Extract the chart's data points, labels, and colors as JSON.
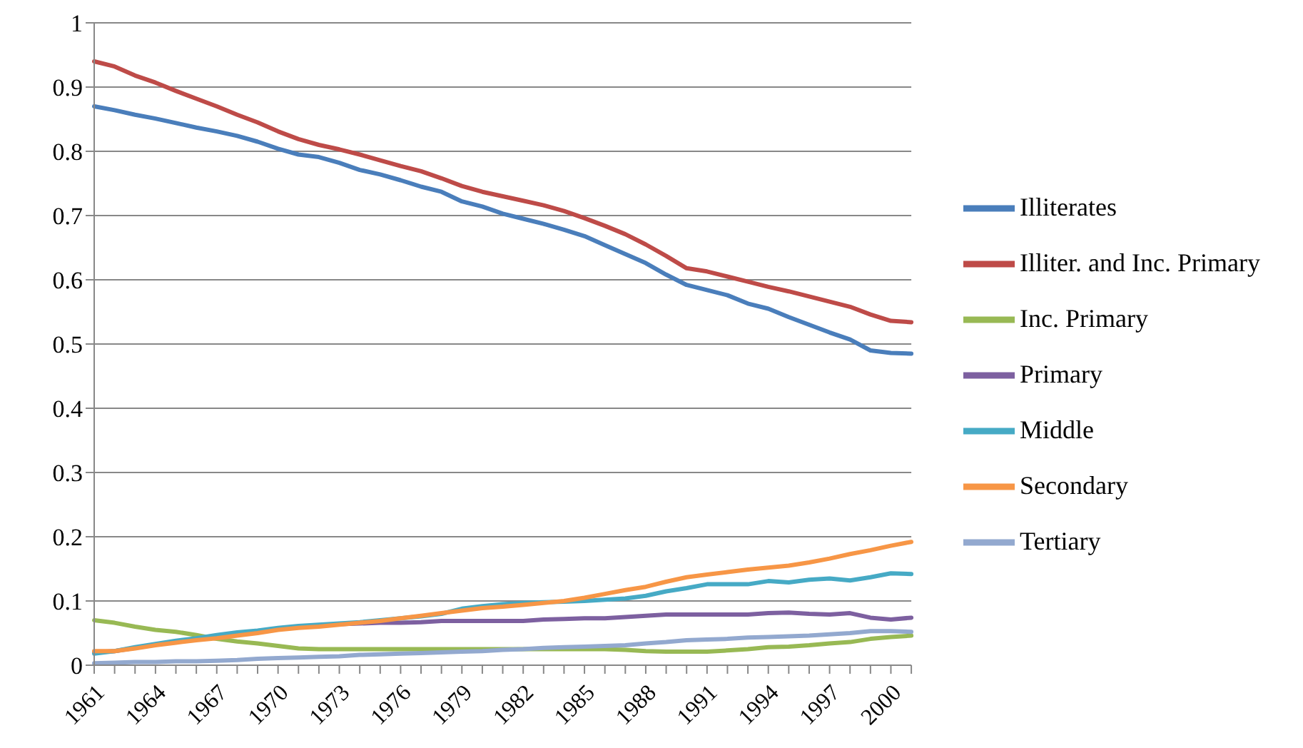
{
  "chart_data": {
    "type": "line",
    "categories": [
      "1961",
      null,
      null,
      "1964",
      null,
      null,
      "1967",
      null,
      null,
      "1970",
      null,
      null,
      "1973",
      null,
      null,
      "1976",
      null,
      null,
      "1979",
      null,
      null,
      "1982",
      null,
      null,
      "1985",
      null,
      null,
      "1988",
      null,
      null,
      "1991",
      null,
      null,
      "1994",
      null,
      null,
      "1997",
      null,
      null,
      "2000",
      null
    ],
    "series": [
      {
        "name": "Illiterates",
        "color": "#4a7ebb",
        "values": [
          0.87,
          0.864,
          0.857,
          0.851,
          0.844,
          0.837,
          0.831,
          0.824,
          0.815,
          0.804,
          0.795,
          0.791,
          0.782,
          0.771,
          0.764,
          0.755,
          0.745,
          0.737,
          0.722,
          0.714,
          0.703,
          0.695,
          0.687,
          0.678,
          0.668,
          0.654,
          0.64,
          0.626,
          0.608,
          0.592,
          0.584,
          0.576,
          0.563,
          0.555,
          0.542,
          0.53,
          0.518,
          0.507,
          0.49,
          0.486,
          0.485
        ]
      },
      {
        "name": "Illiter. and Inc. Primary",
        "color": "#be4b48",
        "values": [
          0.94,
          0.932,
          0.918,
          0.907,
          0.894,
          0.882,
          0.87,
          0.857,
          0.845,
          0.831,
          0.819,
          0.81,
          0.803,
          0.795,
          0.786,
          0.777,
          0.769,
          0.758,
          0.746,
          0.737,
          0.73,
          0.723,
          0.716,
          0.707,
          0.696,
          0.684,
          0.671,
          0.655,
          0.637,
          0.618,
          0.613,
          0.605,
          0.597,
          0.589,
          0.582,
          0.574,
          0.566,
          0.558,
          0.546,
          0.536,
          0.534
        ]
      },
      {
        "name": "Inc. Primary",
        "color": "#98b954",
        "values": [
          0.07,
          0.066,
          0.06,
          0.055,
          0.052,
          0.047,
          0.041,
          0.037,
          0.034,
          0.03,
          0.026,
          0.025,
          0.025,
          0.025,
          0.025,
          0.025,
          0.025,
          0.025,
          0.025,
          0.025,
          0.025,
          0.025,
          0.025,
          0.025,
          0.025,
          0.025,
          0.024,
          0.022,
          0.021,
          0.021,
          0.021,
          0.023,
          0.025,
          0.028,
          0.029,
          0.031,
          0.034,
          0.036,
          0.041,
          0.044,
          0.046
        ]
      },
      {
        "name": "Primary",
        "color": "#7d60a0",
        "values": [
          0.02,
          0.022,
          0.027,
          0.032,
          0.036,
          0.04,
          0.044,
          0.049,
          0.053,
          0.057,
          0.06,
          0.062,
          0.064,
          0.065,
          0.066,
          0.066,
          0.067,
          0.069,
          0.069,
          0.069,
          0.069,
          0.069,
          0.071,
          0.072,
          0.073,
          0.073,
          0.075,
          0.077,
          0.079,
          0.079,
          0.079,
          0.079,
          0.079,
          0.081,
          0.082,
          0.08,
          0.079,
          0.081,
          0.074,
          0.071,
          0.074
        ]
      },
      {
        "name": "Middle",
        "color": "#46aac5",
        "values": [
          0.018,
          0.022,
          0.028,
          0.033,
          0.038,
          0.042,
          0.047,
          0.051,
          0.054,
          0.058,
          0.061,
          0.063,
          0.065,
          0.067,
          0.07,
          0.073,
          0.076,
          0.08,
          0.088,
          0.092,
          0.095,
          0.097,
          0.098,
          0.099,
          0.1,
          0.102,
          0.104,
          0.108,
          0.115,
          0.12,
          0.126,
          0.126,
          0.126,
          0.131,
          0.129,
          0.133,
          0.135,
          0.132,
          0.137,
          0.143,
          0.142
        ]
      },
      {
        "name": "Secondary",
        "color": "#f79646",
        "values": [
          0.022,
          0.022,
          0.026,
          0.031,
          0.035,
          0.039,
          0.042,
          0.046,
          0.05,
          0.055,
          0.058,
          0.06,
          0.063,
          0.066,
          0.069,
          0.073,
          0.077,
          0.081,
          0.085,
          0.089,
          0.091,
          0.094,
          0.097,
          0.1,
          0.105,
          0.111,
          0.117,
          0.122,
          0.13,
          0.137,
          0.141,
          0.145,
          0.149,
          0.152,
          0.155,
          0.16,
          0.166,
          0.173,
          0.179,
          0.186,
          0.192
        ]
      },
      {
        "name": "Tertiary",
        "color": "#93a9cf",
        "values": [
          0.003,
          0.004,
          0.005,
          0.005,
          0.006,
          0.006,
          0.007,
          0.008,
          0.01,
          0.011,
          0.012,
          0.013,
          0.014,
          0.016,
          0.017,
          0.018,
          0.019,
          0.02,
          0.021,
          0.022,
          0.024,
          0.025,
          0.027,
          0.028,
          0.029,
          0.03,
          0.031,
          0.034,
          0.036,
          0.039,
          0.04,
          0.041,
          0.043,
          0.044,
          0.045,
          0.046,
          0.048,
          0.05,
          0.053,
          0.053,
          0.052
        ]
      }
    ],
    "ylim": [
      0,
      1
    ],
    "yticks": [
      0,
      0.1,
      0.2,
      0.3,
      0.4,
      0.5,
      0.6,
      0.7,
      0.8,
      0.9,
      1
    ],
    "grid": "y",
    "legend": "right",
    "marker": "none",
    "line_style": "solid"
  }
}
